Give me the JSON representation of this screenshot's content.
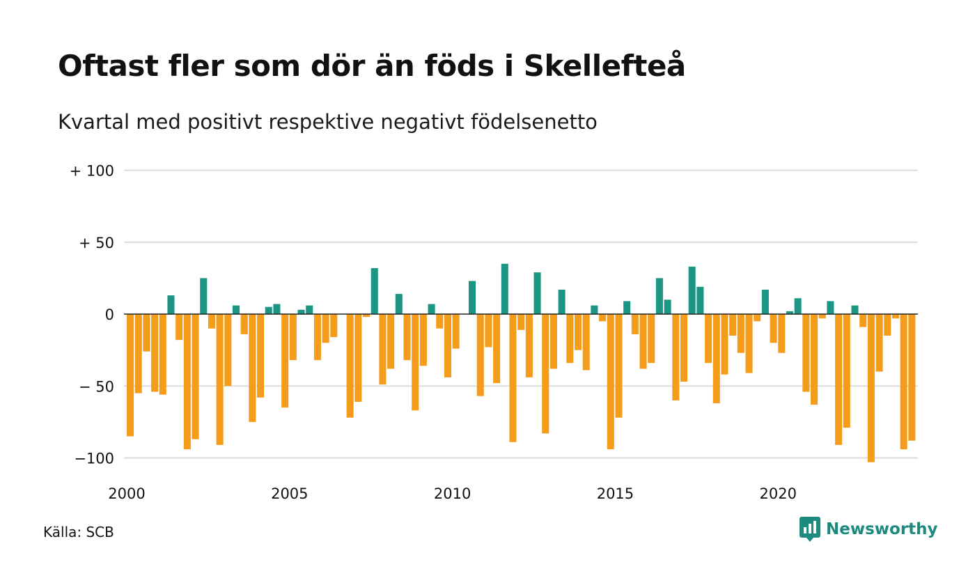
{
  "title": "Oftast fler som dör än föds i Skellefteå",
  "subtitle": "Kvartal med positivt respektive negativt födelsenetto",
  "source": "Källa: SCB",
  "brand": "Newsworthy",
  "colors": {
    "positive": "#1a9683",
    "negative": "#f59c1a",
    "grid": "#dddddd",
    "brand": "#1d8a7f"
  },
  "chart_data": {
    "type": "bar",
    "x_start": 2000.0,
    "x_step": 0.25,
    "x_ticks": [
      2000,
      2005,
      2010,
      2015,
      2020
    ],
    "ylim": [
      -105,
      105
    ],
    "y_ticks": [
      {
        "value": 100,
        "label": "+ 100"
      },
      {
        "value": 50,
        "label": "+  50"
      },
      {
        "value": 0,
        "label": "0"
      },
      {
        "value": -50,
        "label": "− 50"
      },
      {
        "value": -100,
        "label": "−100"
      }
    ],
    "values": [
      -85,
      -55,
      -26,
      -54,
      -56,
      13,
      -18,
      -94,
      -87,
      25,
      -10,
      -91,
      -50,
      6,
      -14,
      -75,
      -58,
      5,
      7,
      -65,
      -32,
      3,
      6,
      -32,
      -20,
      -16,
      0,
      -72,
      -61,
      -2,
      32,
      -49,
      -38,
      14,
      -32,
      -67,
      -36,
      7,
      -10,
      -44,
      -24,
      0,
      23,
      -57,
      -23,
      -48,
      35,
      -89,
      -11,
      -44,
      29,
      -83,
      -38,
      17,
      -34,
      -25,
      -39,
      6,
      -5,
      -94,
      -72,
      9,
      -14,
      -38,
      -34,
      25,
      10,
      -60,
      -47,
      33,
      19,
      -34,
      -62,
      -42,
      -15,
      -27,
      -41,
      -5,
      17,
      -20,
      -27,
      2,
      11,
      -54,
      -63,
      -3,
      9,
      -91,
      -79,
      6,
      -9,
      -103,
      -40,
      -15,
      -3,
      -94,
      -88
    ]
  }
}
